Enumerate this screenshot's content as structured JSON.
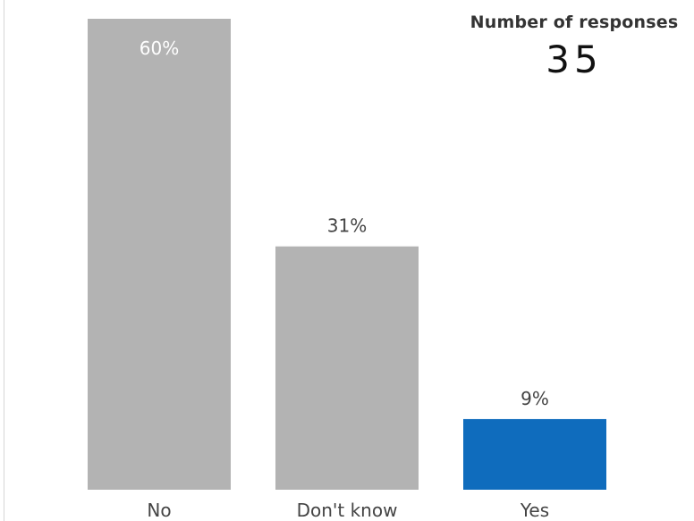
{
  "chart_data": {
    "type": "bar",
    "title": "",
    "xlabel": "",
    "ylabel": "",
    "categories": [
      "No",
      "Don't know",
      "Yes"
    ],
    "values": [
      60,
      31,
      9
    ],
    "data_labels": [
      "60%",
      "31%",
      "9%"
    ],
    "ylim": [
      0,
      60
    ],
    "grid": false,
    "legend": "none",
    "colors": [
      "#b3b3b3",
      "#b3b3b3",
      "#0f6cbd"
    ],
    "data_label_colors": [
      "#ffffff",
      "#444444",
      "#444444"
    ]
  },
  "summary": {
    "label": "Number of responses",
    "value": "35"
  }
}
